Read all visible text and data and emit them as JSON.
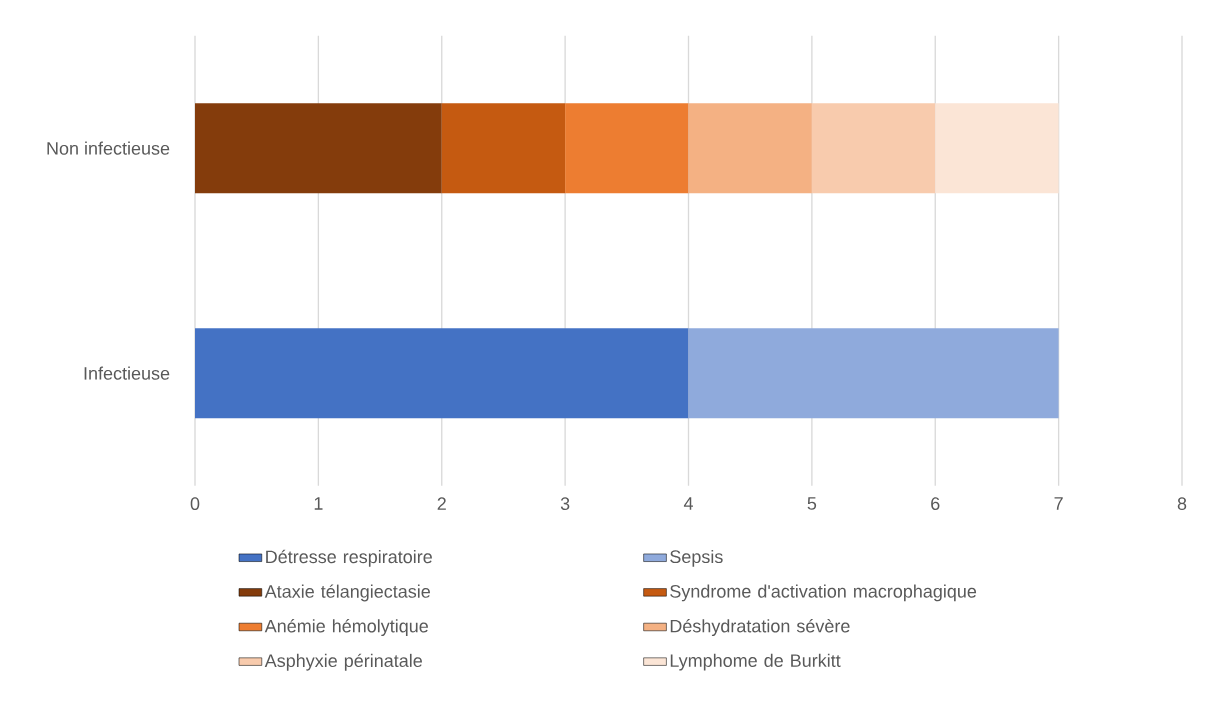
{
  "chart_data": {
    "type": "bar",
    "orientation": "horizontal",
    "stacked": true,
    "categories": [
      "Non infectieuse",
      "Infectieuse"
    ],
    "series": [
      {
        "name": "Détresse respiratoire",
        "color": "#4472c4",
        "values": [
          null,
          4
        ]
      },
      {
        "name": "Sepsis",
        "color": "#8faadc",
        "values": [
          null,
          3
        ]
      },
      {
        "name": "Ataxie télangiectasie",
        "color": "#843c0c",
        "values": [
          2,
          null
        ]
      },
      {
        "name": "Syndrome d'activation macrophagique",
        "color": "#c55a11",
        "values": [
          1,
          null
        ]
      },
      {
        "name": "Anémie hémolytique",
        "color": "#ed7d31",
        "values": [
          1,
          null
        ]
      },
      {
        "name": "Déshydratation sévère",
        "color": "#f4b183",
        "values": [
          1,
          null
        ]
      },
      {
        "name": "Asphyxie périnatale",
        "color": "#f8cbad",
        "values": [
          1,
          null
        ]
      },
      {
        "name": "Lymphome de Burkitt",
        "color": "#fbe5d6",
        "values": [
          1,
          null
        ]
      }
    ],
    "xlim": [
      0,
      8
    ],
    "xticks": [
      0,
      1,
      2,
      3,
      4,
      5,
      6,
      7,
      8
    ],
    "grid": "x",
    "legend": "bottom"
  }
}
